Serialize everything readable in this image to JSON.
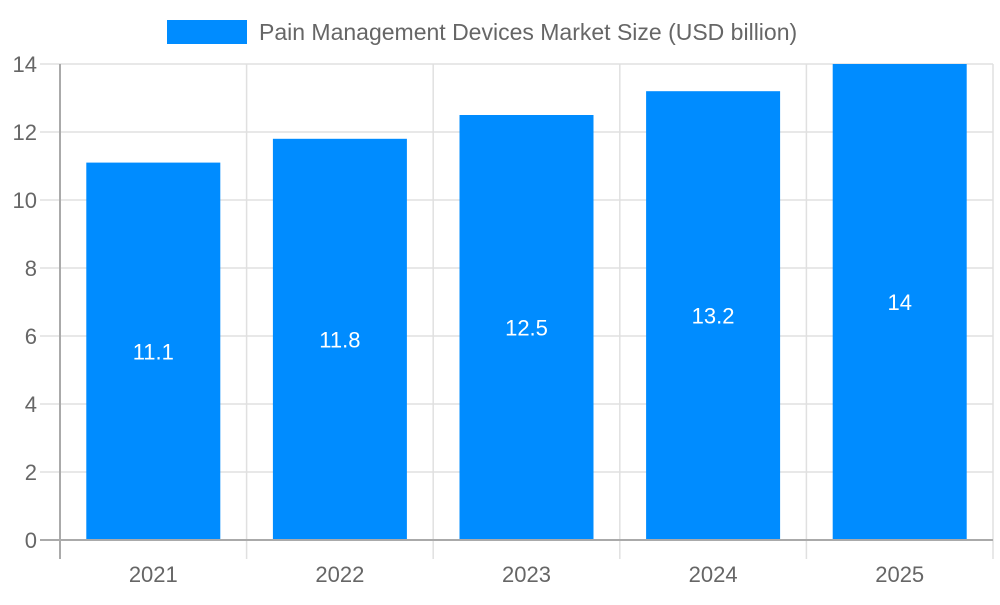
{
  "chart_data": {
    "type": "bar",
    "title": "",
    "xlabel": "",
    "ylabel": "",
    "categories": [
      "2021",
      "2022",
      "2023",
      "2024",
      "2025"
    ],
    "series": [
      {
        "name": "Pain Management Devices Market Size (USD billion)",
        "values": [
          11.1,
          11.8,
          12.5,
          13.2,
          14
        ],
        "color": "#008cff"
      }
    ],
    "data_labels": [
      "11.1",
      "11.8",
      "12.5",
      "13.2",
      "14"
    ],
    "ylim": [
      0,
      14
    ],
    "yticks": [
      "0",
      "2",
      "4",
      "6",
      "8",
      "10",
      "12",
      "14"
    ],
    "grid": true,
    "legend_position": "top"
  }
}
